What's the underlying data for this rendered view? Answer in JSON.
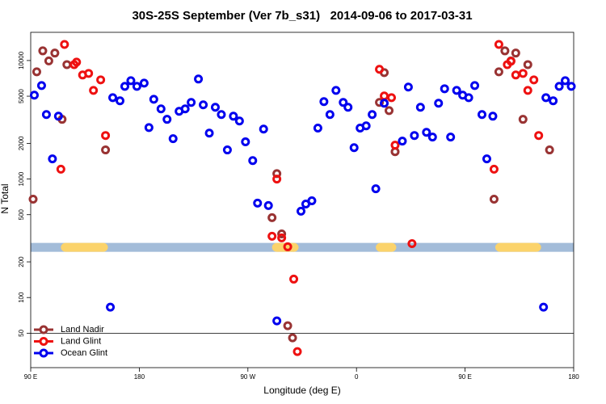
{
  "chart_data": {
    "type": "scatter",
    "title": "30S-25S September (Ver 7b_s31)   2014-09-06 to 2017-03-31",
    "x_label": "Longitude (deg E)",
    "y_label": "N Total",
    "xlim": [
      90,
      540
    ],
    "ylim": [
      25.6,
      17300
    ],
    "log_y": true,
    "xticks": [
      {
        "value": 90,
        "label": "90 E"
      },
      {
        "value": 180,
        "label": "180"
      },
      {
        "value": 270,
        "label": "90 W"
      },
      {
        "value": 360,
        "label": "0"
      },
      {
        "value": 450,
        "label": "90 E"
      },
      {
        "value": 540,
        "label": "180"
      }
    ],
    "yticks": [
      50,
      100,
      200,
      500,
      1000,
      2000,
      5000,
      10000
    ],
    "hline": 50,
    "band": {
      "range": [
        243,
        289
      ],
      "color": "#a3bcd9",
      "land_color": "#fbd36b",
      "land": [
        [
          115,
          154
        ],
        [
          290,
          312
        ],
        [
          376,
          393
        ],
        [
          475,
          513
        ]
      ]
    },
    "legend": "bottomleft",
    "series": [
      {
        "name": "Land Nadir",
        "color": "#993333",
        "x": [
          92,
          95,
          100,
          105,
          110,
          116,
          120,
          152,
          290,
          294,
          298,
          303,
          307,
          379,
          383,
          387,
          392,
          474,
          478,
          483,
          488,
          492,
          498,
          502,
          520
        ],
        "values": [
          676,
          8030,
          12070,
          9920,
          11560,
          3190,
          9240,
          1760,
          472,
          1110,
          344,
          57.8,
          45.7,
          4430,
          7910,
          3780,
          1700,
          676,
          8030,
          12070,
          9920,
          11560,
          3190,
          9240,
          1760
        ]
      },
      {
        "name": "Land Glint",
        "color": "#ee1111",
        "x": [
          115,
          118,
          126,
          128,
          133,
          138,
          142,
          148,
          152,
          290,
          294,
          298,
          303,
          308,
          311,
          379,
          383,
          389,
          392,
          406,
          474,
          478,
          485,
          488,
          492,
          498,
          502,
          507,
          511
        ],
        "values": [
          1210,
          13680,
          9240,
          9690,
          7550,
          7790,
          5600,
          6870,
          2330,
          329,
          1000,
          319,
          268,
          143,
          35,
          8430,
          5020,
          4860,
          1930,
          285,
          1210,
          13680,
          9240,
          9850,
          7550,
          7790,
          5600,
          6870,
          2330
        ]
      },
      {
        "name": "Ocean Glint",
        "color": "#0000ee",
        "x": [
          93,
          99,
          103,
          108,
          113,
          156,
          158,
          164,
          168,
          173,
          178,
          184,
          188,
          192,
          198,
          203,
          208,
          213,
          218,
          223,
          229,
          233,
          238,
          243,
          248,
          253,
          258,
          263,
          268,
          274,
          278,
          283,
          287,
          294,
          314,
          318,
          323,
          328,
          333,
          338,
          343,
          349,
          353,
          358,
          363,
          368,
          373,
          376,
          383,
          398,
          403,
          408,
          413,
          418,
          423,
          428,
          433,
          438,
          443,
          448,
          453,
          458,
          464,
          468,
          473,
          515,
          517,
          523,
          528,
          533,
          538
        ],
        "values": [
          5100,
          6150,
          3500,
          1480,
          3390,
          83,
          4860,
          4570,
          6050,
          6760,
          6050,
          6450,
          2720,
          4710,
          3910,
          3190,
          2190,
          3730,
          3910,
          4430,
          6980,
          4230,
          2440,
          4030,
          3500,
          1760,
          3390,
          3090,
          2060,
          1430,
          626,
          2640,
          597,
          63.5,
          535,
          615,
          655,
          2690,
          4500,
          3500,
          5600,
          4430,
          4030,
          1840,
          2690,
          2810,
          3500,
          828,
          4360,
          2090,
          5970,
          2330,
          4030,
          2480,
          2260,
          4360,
          5780,
          2260,
          5600,
          5100,
          4860,
          6150,
          3500,
          1480,
          3390,
          83,
          4860,
          4570,
          6050,
          6760,
          6050
        ]
      }
    ]
  }
}
